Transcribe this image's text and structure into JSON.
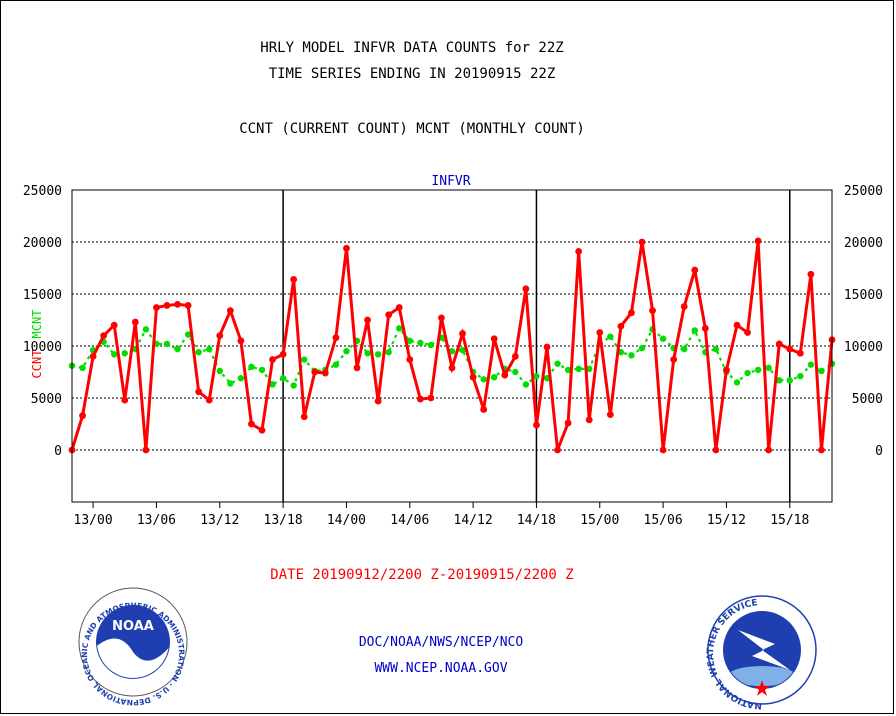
{
  "header": {
    "title_line1": "HRLY MODEL INFVR DATA COUNTS for 22Z",
    "title_line2": "TIME SERIES ENDING IN 20190915 22Z",
    "subtitle": "CCNT (CURRENT COUNT) MCNT (MONTHLY COUNT)"
  },
  "footer": {
    "date_range": "DATE 20190912/2200 Z-20190915/2200 Z",
    "org_line": "DOC/NOAA/NWS/NCEP/NCO",
    "url_line": "WWW.NCEP.NOAA.GOV"
  },
  "logos": {
    "noaa_name": "NOAA",
    "noaa_ring_text": "NATIONAL OCEANIC AND ATMOSPHERIC ADMINISTRATION · U.S. DEPARTMENT OF COMMERCE ·",
    "nws_ring_text": "NATIONAL WEATHER SERVICE"
  },
  "colors": {
    "ccnt": "#ff0000",
    "mcnt": "#00dd00",
    "label_blue": "#0000cc"
  },
  "chart_data": {
    "type": "line",
    "title": "INFVR",
    "ylabel_left_series1": "CCNT",
    "ylabel_left_series2": "MCNT",
    "ylim": [
      -5000,
      25000
    ],
    "yticks": [
      0,
      5000,
      10000,
      15000,
      20000,
      25000
    ],
    "ytick_labels": [
      "0",
      "5000",
      "10000",
      "15000",
      "20000",
      "25000"
    ],
    "grid": true,
    "x_start_hour": 22,
    "x_count": 73,
    "xtick_labels": [
      {
        "hour_offset": 2,
        "label": "13/00"
      },
      {
        "hour_offset": 8,
        "label": "13/06"
      },
      {
        "hour_offset": 14,
        "label": "13/12"
      },
      {
        "hour_offset": 20,
        "label": "13/18"
      },
      {
        "hour_offset": 26,
        "label": "14/00"
      },
      {
        "hour_offset": 32,
        "label": "14/06"
      },
      {
        "hour_offset": 38,
        "label": "14/12"
      },
      {
        "hour_offset": 44,
        "label": "14/18"
      },
      {
        "hour_offset": 50,
        "label": "15/00"
      },
      {
        "hour_offset": 56,
        "label": "15/06"
      },
      {
        "hour_offset": 62,
        "label": "15/12"
      },
      {
        "hour_offset": 68,
        "label": "15/18"
      }
    ],
    "day_dividers_hour_offset": [
      20,
      44,
      68
    ],
    "series": [
      {
        "name": "CCNT",
        "values": [
          0,
          3300,
          9000,
          11000,
          12000,
          4800,
          12300,
          0,
          13700,
          13900,
          14000,
          13900,
          5600,
          4800,
          11000,
          13400,
          10500,
          2500,
          1900,
          8700,
          9200,
          16400,
          3200,
          7500,
          7400,
          10800,
          19400,
          7900,
          12500,
          4700,
          13000,
          13700,
          8700,
          4900,
          5000,
          12700,
          7900,
          11200,
          7000,
          3900,
          10700,
          7200,
          9000,
          15500,
          2400,
          9900,
          0,
          2600,
          19100,
          2900,
          11300,
          3400,
          11900,
          13200,
          20000,
          13400,
          0,
          8700,
          13800,
          17300,
          11700,
          0,
          7700,
          12000,
          11300,
          20100,
          0,
          10200,
          9700,
          9300,
          16900,
          0,
          10600
        ]
      },
      {
        "name": "MCNT",
        "values": [
          8100,
          7900,
          9600,
          10400,
          9200,
          9300,
          9700,
          11600,
          10200,
          10200,
          9700,
          11100,
          9400,
          9700,
          7600,
          6400,
          6900,
          8000,
          7700,
          6300,
          6900,
          6200,
          8700,
          7600,
          7700,
          8200,
          9500,
          10500,
          9300,
          9200,
          9400,
          11700,
          10500,
          10300,
          10100,
          10800,
          9500,
          9600,
          7500,
          6800,
          7000,
          7800,
          7500,
          6300,
          7100,
          6900,
          8300,
          7700,
          7800,
          7800,
          10200,
          10900,
          9400,
          9100,
          9800,
          11600,
          10700,
          9800,
          9700,
          11500,
          9400,
          9700,
          7500,
          6500,
          7400,
          7700,
          7900,
          6700,
          6700,
          7100,
          8200,
          7600,
          8300
        ]
      }
    ]
  }
}
